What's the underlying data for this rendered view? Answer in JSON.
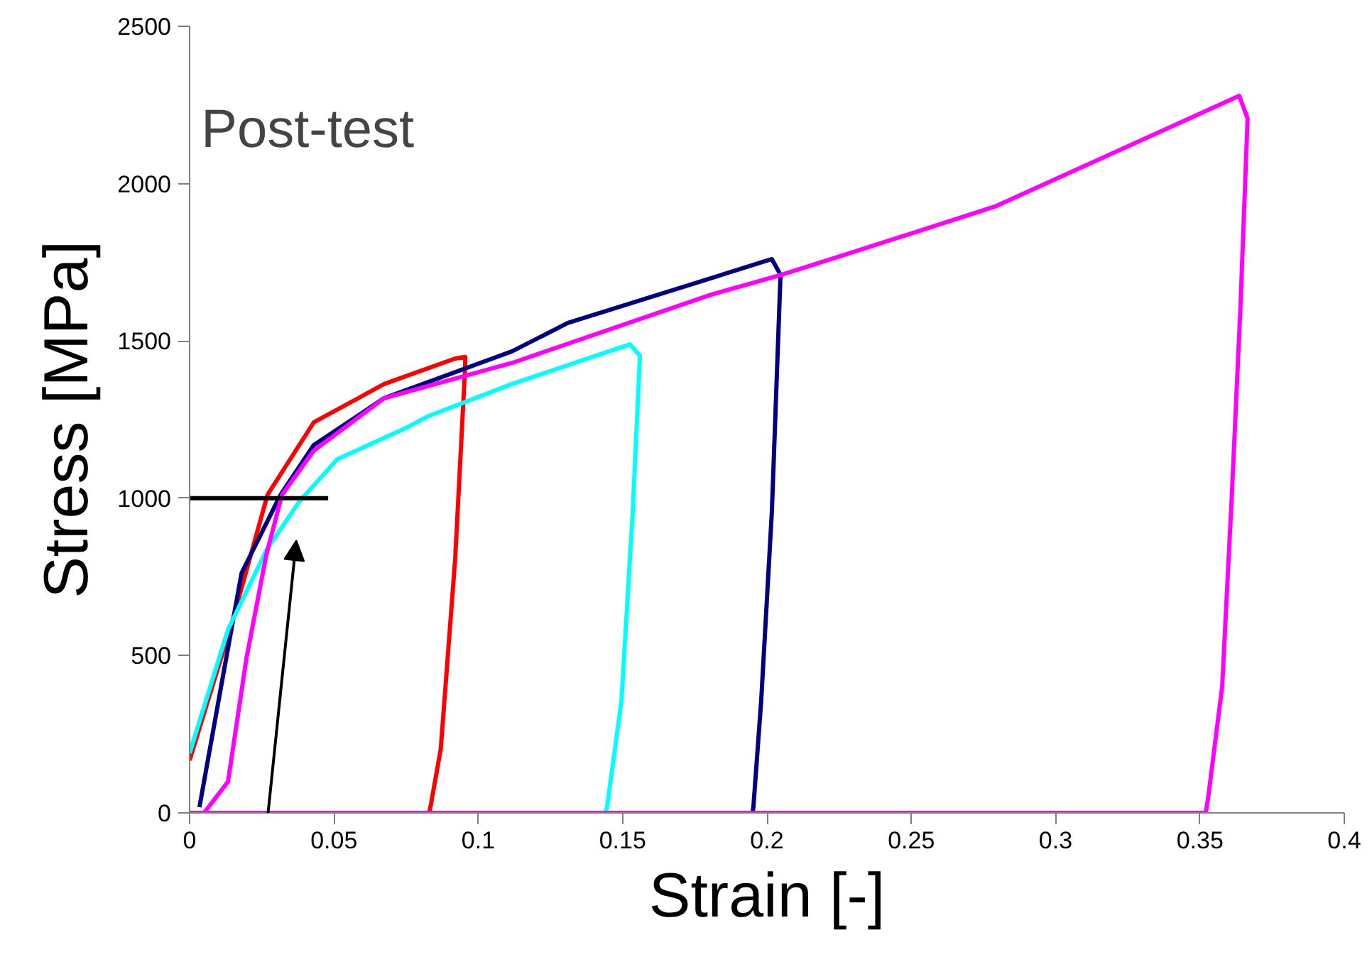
{
  "chart_data": {
    "type": "line",
    "title": "Post-test",
    "xlabel": "Strain [-]",
    "ylabel": "Stress [MPa]",
    "xlim": [
      0,
      0.4
    ],
    "xticks": [
      0,
      0.05,
      0.1,
      0.15,
      0.2,
      0.25,
      0.3,
      0.35,
      0.4
    ],
    "ylim": [
      0,
      2500
    ],
    "yticks": [
      0,
      500,
      1000,
      1500,
      2000,
      2500
    ],
    "series": [
      {
        "color": "#ff0000",
        "x": [
          0,
          0.0148,
          0.027,
          0.043,
          0.0674,
          0.092,
          0.0955,
          0.0954,
          0.092,
          0.087,
          0.0837,
          0.083,
          0
        ],
        "values": [
          167,
          609,
          1011,
          1241,
          1363,
          1444,
          1449,
          1408,
          808,
          203,
          32,
          0,
          0
        ]
      },
      {
        "color": "#000080",
        "x": [
          0.0034,
          0.0118,
          0.018,
          0.0315,
          0.043,
          0.0674,
          0.1117,
          0.131,
          0.2017,
          0.2047,
          0.2017,
          0.198,
          0.1953,
          0.195,
          0
        ],
        "values": [
          18,
          447,
          762,
          1011,
          1169,
          1318,
          1467,
          1557,
          1760,
          1710,
          957,
          356,
          18,
          0,
          0
        ]
      },
      {
        "color": "#00ffff",
        "x": [
          0,
          0.0133,
          0.0266,
          0.0379,
          0.0512,
          0.0758,
          0.0822,
          0.1117,
          0.1525,
          0.156,
          0.1535,
          0.1496,
          0.1446,
          0.144,
          0
        ],
        "values": [
          190,
          582,
          835,
          988,
          1124,
          1227,
          1259,
          1363,
          1489,
          1453,
          957,
          356,
          18,
          0,
          0
        ]
      },
      {
        "color": "#ff00ff",
        "x": [
          0.005,
          0.0133,
          0.0197,
          0.0266,
          0.032,
          0.043,
          0.0674,
          0.1117,
          0.1806,
          0.205,
          0.2298,
          0.279,
          0.3636,
          0.3665,
          0.364,
          0.361,
          0.3577,
          0.3528,
          0.352,
          0
        ],
        "values": [
          0,
          99,
          492,
          821,
          1011,
          1151,
          1318,
          1430,
          1647,
          1710,
          1782,
          1927,
          2279,
          2207,
          1602,
          1002,
          402,
          45,
          0,
          0
        ]
      },
      {
        "color": "#000000",
        "x": [
          0,
          0.048
        ],
        "values": [
          1000,
          1000
        ]
      }
    ]
  }
}
